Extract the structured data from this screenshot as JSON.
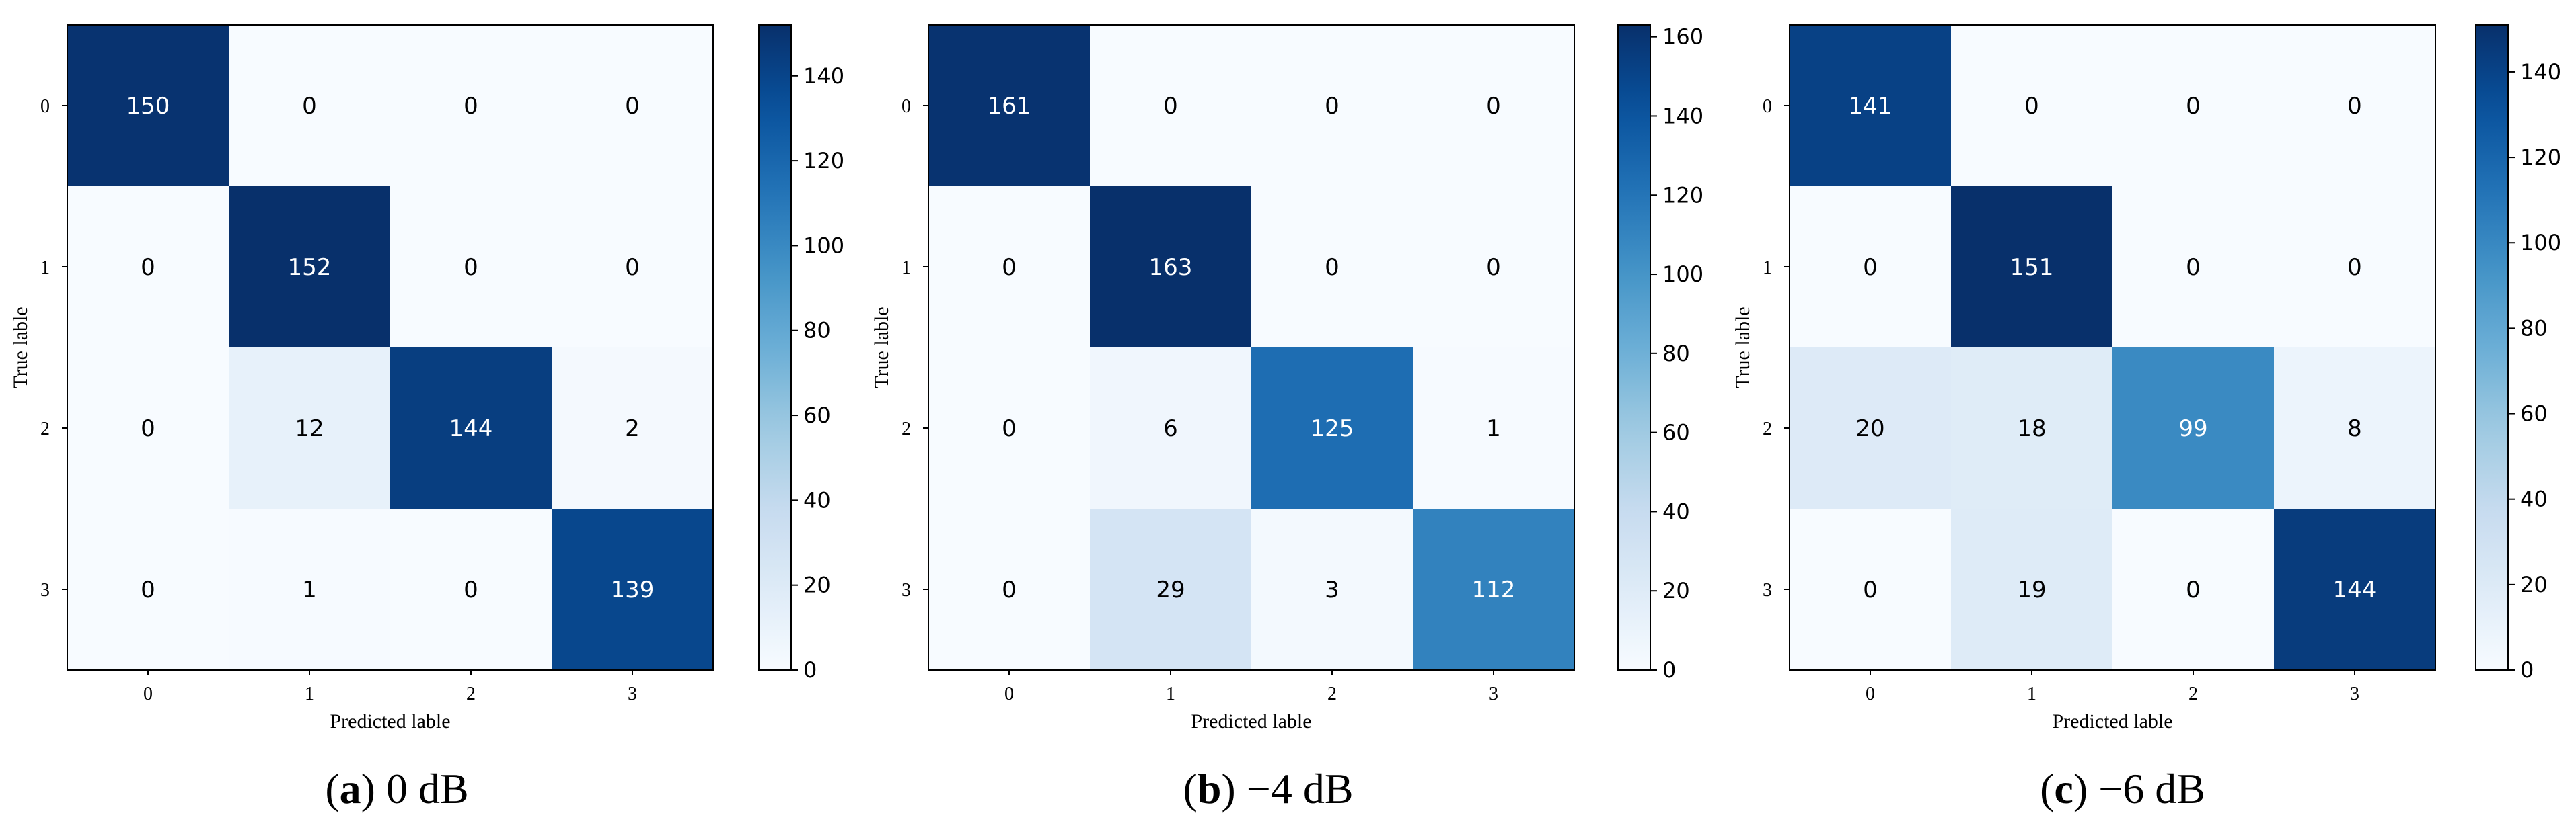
{
  "chart_data": [
    {
      "type": "heatmap",
      "caption_letter": "a",
      "caption_text": " 0 dB",
      "xlabel": "Predicted lable",
      "ylabel": "True lable",
      "x_categories": [
        "0",
        "1",
        "2",
        "3"
      ],
      "y_categories": [
        "0",
        "1",
        "2",
        "3"
      ],
      "matrix": [
        [
          150,
          0,
          0,
          0
        ],
        [
          0,
          152,
          0,
          0
        ],
        [
          0,
          12,
          144,
          2
        ],
        [
          0,
          1,
          0,
          139
        ]
      ],
      "colorbar": {
        "min": 0,
        "max": 152,
        "ticks": [
          0,
          20,
          40,
          60,
          80,
          100,
          120,
          140
        ]
      },
      "colormap": "Blues"
    },
    {
      "type": "heatmap",
      "caption_letter": "b",
      "caption_text": " −4 dB",
      "xlabel": "Predicted lable",
      "ylabel": "True lable",
      "x_categories": [
        "0",
        "1",
        "2",
        "3"
      ],
      "y_categories": [
        "0",
        "1",
        "2",
        "3"
      ],
      "matrix": [
        [
          161,
          0,
          0,
          0
        ],
        [
          0,
          163,
          0,
          0
        ],
        [
          0,
          6,
          125,
          1
        ],
        [
          0,
          29,
          3,
          112
        ]
      ],
      "colorbar": {
        "min": 0,
        "max": 163,
        "ticks": [
          0,
          20,
          40,
          60,
          80,
          100,
          120,
          140,
          160
        ]
      },
      "colormap": "Blues"
    },
    {
      "type": "heatmap",
      "caption_letter": "c",
      "caption_text": " −6 dB",
      "xlabel": "Predicted lable",
      "ylabel": "True lable",
      "x_categories": [
        "0",
        "1",
        "2",
        "3"
      ],
      "y_categories": [
        "0",
        "1",
        "2",
        "3"
      ],
      "matrix": [
        [
          141,
          0,
          0,
          0
        ],
        [
          0,
          151,
          0,
          0
        ],
        [
          20,
          18,
          99,
          8
        ],
        [
          0,
          19,
          0,
          144
        ]
      ],
      "colorbar": {
        "min": 0,
        "max": 151,
        "ticks": [
          0,
          20,
          40,
          60,
          80,
          100,
          120,
          140
        ]
      },
      "colormap": "Blues"
    }
  ]
}
